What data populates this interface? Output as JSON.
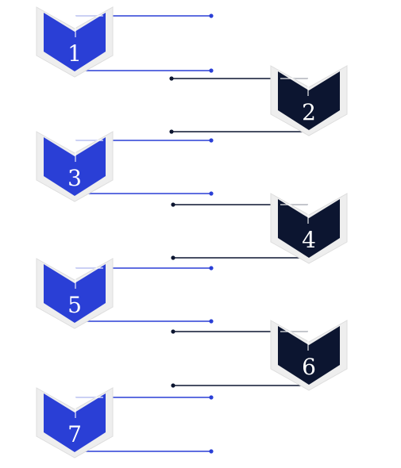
{
  "colors": {
    "blue": "#2a3fd6",
    "navy": "#0c1530",
    "outline": "#eeeeee",
    "text": "#ffffff"
  },
  "steps": [
    {
      "number": "1",
      "color": "blue"
    },
    {
      "number": "2",
      "color": "navy"
    },
    {
      "number": "3",
      "color": "blue"
    },
    {
      "number": "4",
      "color": "navy"
    },
    {
      "number": "5",
      "color": "blue"
    },
    {
      "number": "6",
      "color": "navy"
    },
    {
      "number": "7",
      "color": "blue"
    }
  ]
}
